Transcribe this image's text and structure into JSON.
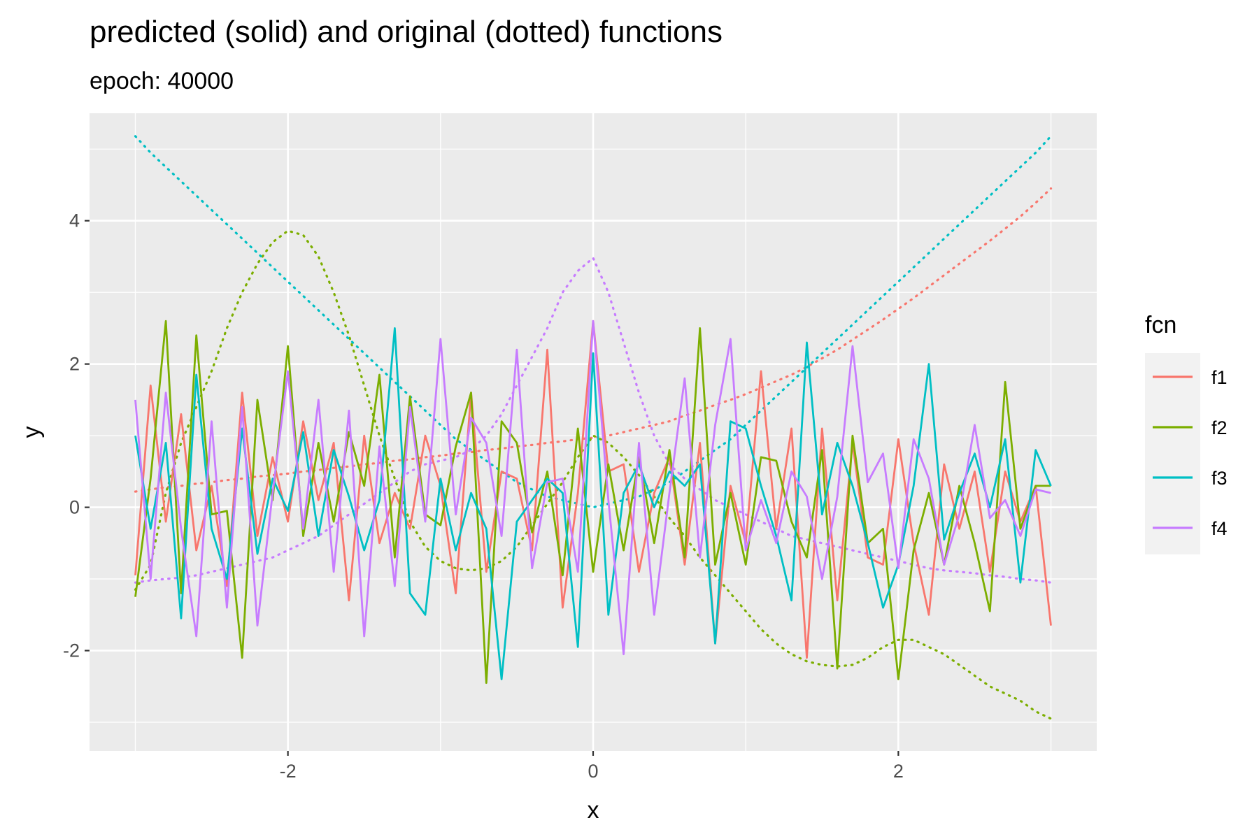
{
  "chart_data": {
    "type": "line",
    "title": "predicted (solid) and original (dotted) functions",
    "subtitle": "epoch: 40000",
    "xlabel": "x",
    "ylabel": "y",
    "xlim": [
      -3.3,
      3.3
    ],
    "ylim": [
      -3.4,
      5.5
    ],
    "xticks": [
      -2,
      0,
      2
    ],
    "xtick_labels": [
      "-2",
      "0",
      "2"
    ],
    "yticks": [
      -2,
      0,
      2,
      4
    ],
    "ytick_labels": [
      "-2",
      "0",
      "2",
      "4"
    ],
    "grid": true,
    "legend": {
      "title": "fcn",
      "position": "right",
      "entries": [
        "f1",
        "f2",
        "f3",
        "f4"
      ]
    },
    "colors": {
      "f1": "#F8766D",
      "f2": "#7CAE00",
      "f3": "#00BFC4",
      "f4": "#C77CFF"
    },
    "x": [
      -3,
      -2.9,
      -2.8,
      -2.7,
      -2.6,
      -2.5,
      -2.4,
      -2.3,
      -2.2,
      -2.1,
      -2,
      -1.9,
      -1.8,
      -1.7,
      -1.6,
      -1.5,
      -1.4,
      -1.3,
      -1.2,
      -1.1,
      -1,
      -0.9,
      -0.8,
      -0.7,
      -0.6,
      -0.5,
      -0.4,
      -0.3,
      -0.2,
      -0.1,
      0,
      0.1,
      0.2,
      0.3,
      0.4,
      0.5,
      0.6,
      0.7,
      0.8,
      0.9,
      1,
      1.1,
      1.2,
      1.3,
      1.4,
      1.5,
      1.6,
      1.7,
      1.8,
      1.9,
      2,
      2.1,
      2.2,
      2.3,
      2.4,
      2.5,
      2.6,
      2.7,
      2.8,
      2.9,
      3
    ],
    "series": [
      {
        "name": "f1",
        "predicted": [
          -0.95,
          1.7,
          -0.2,
          1.3,
          -0.6,
          0.3,
          -1.1,
          1.6,
          -0.4,
          0.7,
          -0.2,
          1.2,
          0.1,
          0.9,
          -1.3,
          1.0,
          -0.5,
          0.2,
          -0.3,
          1.0,
          0.3,
          -1.2,
          1.6,
          -0.9,
          0.5,
          0.4,
          -0.6,
          2.2,
          -1.4,
          0.2,
          2.6,
          0.5,
          0.6,
          -0.9,
          0.2,
          0.7,
          -0.8,
          0.9,
          -1.9,
          0.3,
          -0.5,
          1.9,
          -0.3,
          1.1,
          -2.1,
          1.1,
          -1.3,
          0.9,
          -0.7,
          -0.8,
          0.95,
          -0.5,
          -1.5,
          0.6,
          -0.3,
          0.5,
          -0.9,
          0.5,
          -0.2,
          0.3,
          -1.65
        ],
        "original": [
          0.22,
          0.25,
          0.28,
          0.3,
          0.33,
          0.35,
          0.38,
          0.4,
          0.43,
          0.45,
          0.47,
          0.5,
          0.52,
          0.55,
          0.57,
          0.6,
          0.62,
          0.65,
          0.67,
          0.7,
          0.72,
          0.75,
          0.77,
          0.8,
          0.82,
          0.85,
          0.87,
          0.9,
          0.92,
          0.95,
          0.97,
          1.0,
          1.05,
          1.1,
          1.15,
          1.2,
          1.28,
          1.35,
          1.43,
          1.5,
          1.58,
          1.67,
          1.76,
          1.85,
          1.96,
          2.08,
          2.2,
          2.34,
          2.48,
          2.62,
          2.77,
          2.92,
          3.08,
          3.24,
          3.4,
          3.56,
          3.72,
          3.89,
          4.06,
          4.25,
          4.45
        ]
      },
      {
        "name": "f2",
        "predicted": [
          -1.25,
          0.4,
          2.6,
          -1.2,
          2.4,
          -0.1,
          -0.05,
          -2.1,
          1.5,
          0.1,
          2.25,
          -0.4,
          0.9,
          -0.2,
          1.05,
          0.3,
          1.85,
          -0.7,
          1.55,
          -0.1,
          -0.25,
          0.85,
          1.6,
          -2.45,
          1.2,
          0.9,
          -0.35,
          0.5,
          -0.95,
          1.1,
          -0.9,
          0.6,
          -0.6,
          0.7,
          -0.5,
          0.8,
          -0.7,
          2.5,
          -0.8,
          0.2,
          -0.8,
          0.7,
          0.65,
          -0.2,
          -0.7,
          0.8,
          -2.25,
          1.0,
          -0.5,
          -0.3,
          -2.4,
          -0.6,
          0.2,
          -0.8,
          0.3,
          -0.5,
          -1.45,
          1.75,
          -0.3,
          0.3,
          0.3
        ],
        "original": [
          -1.15,
          -0.8,
          0.2,
          0.9,
          1.4,
          1.9,
          2.5,
          3.0,
          3.4,
          3.7,
          3.86,
          3.8,
          3.5,
          3.0,
          2.4,
          1.7,
          1.0,
          0.4,
          -0.2,
          -0.55,
          -0.75,
          -0.85,
          -0.88,
          -0.85,
          -0.75,
          -0.55,
          -0.25,
          0.05,
          0.35,
          0.7,
          1.0,
          0.9,
          0.7,
          0.45,
          0.15,
          -0.15,
          -0.4,
          -0.7,
          -0.95,
          -1.2,
          -1.45,
          -1.7,
          -1.9,
          -2.05,
          -2.15,
          -2.2,
          -2.22,
          -2.2,
          -2.1,
          -1.95,
          -1.85,
          -1.85,
          -1.95,
          -2.05,
          -2.2,
          -2.35,
          -2.5,
          -2.6,
          -2.7,
          -2.85,
          -2.95
        ]
      },
      {
        "name": "f3",
        "predicted": [
          1.0,
          -0.3,
          0.9,
          -1.55,
          1.85,
          -0.3,
          -1.0,
          1.1,
          -0.65,
          0.4,
          -0.05,
          1.05,
          -0.4,
          0.8,
          0.15,
          -0.6,
          0.1,
          2.5,
          -1.2,
          -1.5,
          0.4,
          -0.6,
          0.2,
          -0.3,
          -2.4,
          -0.2,
          0.1,
          0.4,
          0.2,
          -1.95,
          2.15,
          -1.5,
          0.2,
          0.6,
          0.0,
          0.5,
          0.3,
          0.6,
          -1.9,
          1.2,
          1.1,
          0.3,
          -0.4,
          -1.3,
          2.3,
          -0.1,
          0.9,
          0.3,
          -0.5,
          -1.4,
          -0.8,
          0.3,
          2.0,
          -0.45,
          0.2,
          0.75,
          0.0,
          0.95,
          -1.05,
          0.8,
          0.3
        ],
        "original": [
          5.18,
          4.95,
          4.75,
          4.55,
          4.35,
          4.15,
          3.95,
          3.75,
          3.55,
          3.35,
          3.15,
          2.95,
          2.75,
          2.55,
          2.35,
          2.15,
          1.95,
          1.75,
          1.55,
          1.35,
          1.15,
          0.95,
          0.8,
          0.65,
          0.5,
          0.35,
          0.25,
          0.15,
          0.1,
          0.05,
          0.0,
          0.05,
          0.1,
          0.15,
          0.25,
          0.35,
          0.5,
          0.65,
          0.8,
          0.95,
          1.15,
          1.35,
          1.55,
          1.75,
          1.95,
          2.15,
          2.35,
          2.55,
          2.75,
          2.95,
          3.15,
          3.35,
          3.55,
          3.75,
          3.95,
          4.15,
          4.35,
          4.55,
          4.75,
          4.95,
          5.18
        ]
      },
      {
        "name": "f4",
        "predicted": [
          1.5,
          -1.0,
          1.6,
          -0.3,
          -1.8,
          1.2,
          -1.4,
          1.4,
          -1.65,
          0.2,
          1.9,
          -0.3,
          1.5,
          -0.9,
          1.35,
          -1.8,
          0.85,
          -1.1,
          1.4,
          -0.2,
          2.35,
          -0.1,
          1.25,
          0.9,
          -0.4,
          2.2,
          -0.85,
          0.35,
          0.4,
          -0.9,
          2.6,
          0.1,
          -2.05,
          0.9,
          -1.5,
          0.2,
          1.8,
          -0.7,
          1.15,
          2.35,
          -0.6,
          0.1,
          -0.5,
          0.5,
          0.15,
          -1.0,
          0.15,
          2.25,
          0.35,
          0.75,
          -0.85,
          0.95,
          0.4,
          -0.8,
          -0.1,
          1.15,
          -0.15,
          0.1,
          -0.4,
          0.25,
          0.2
        ],
        "original": [
          -1.05,
          -1.02,
          -1.0,
          -0.98,
          -0.95,
          -0.9,
          -0.85,
          -0.8,
          -0.75,
          -0.7,
          -0.6,
          -0.5,
          -0.4,
          -0.25,
          -0.1,
          0.05,
          0.2,
          0.35,
          0.5,
          0.6,
          0.65,
          0.7,
          0.8,
          1.0,
          1.3,
          1.7,
          2.1,
          2.5,
          3.0,
          3.3,
          3.48,
          3.0,
          2.3,
          1.6,
          1.0,
          0.6,
          0.4,
          0.25,
          0.1,
          0.0,
          -0.1,
          -0.2,
          -0.3,
          -0.4,
          -0.45,
          -0.5,
          -0.55,
          -0.6,
          -0.65,
          -0.7,
          -0.75,
          -0.8,
          -0.85,
          -0.88,
          -0.9,
          -0.92,
          -0.95,
          -0.97,
          -1.0,
          -1.02,
          -1.05
        ]
      }
    ]
  }
}
